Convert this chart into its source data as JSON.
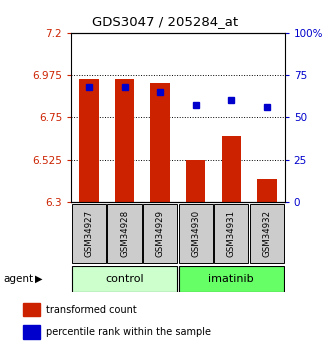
{
  "title": "GDS3047 / 205284_at",
  "samples": [
    "GSM34927",
    "GSM34928",
    "GSM34929",
    "GSM34930",
    "GSM34931",
    "GSM34932"
  ],
  "bar_values": [
    6.955,
    6.955,
    6.93,
    6.525,
    6.65,
    6.42
  ],
  "percentile_values": [
    68,
    68,
    65,
    57,
    60,
    56
  ],
  "ylim_left": [
    6.3,
    7.2
  ],
  "ylim_right": [
    0,
    100
  ],
  "yticks_left": [
    6.3,
    6.525,
    6.75,
    6.975,
    7.2
  ],
  "ytick_labels_left": [
    "6.3",
    "6.525",
    "6.75",
    "6.975",
    "7.2"
  ],
  "yticks_right": [
    0,
    25,
    50,
    75,
    100
  ],
  "ytick_labels_right": [
    "0",
    "25",
    "50",
    "75",
    "100%"
  ],
  "hlines": [
    6.975,
    6.75,
    6.525
  ],
  "groups": [
    {
      "label": "control",
      "indices": [
        0,
        1,
        2
      ],
      "color": "#ccffcc"
    },
    {
      "label": "imatinib",
      "indices": [
        3,
        4,
        5
      ],
      "color": "#66ff66"
    }
  ],
  "bar_color": "#cc2200",
  "percentile_color": "#0000cc",
  "bar_bottom": 6.3,
  "legend_items": [
    {
      "color": "#cc2200",
      "label": "transformed count"
    },
    {
      "color": "#0000cc",
      "label": "percentile rank within the sample"
    }
  ],
  "left_tick_color": "#cc2200",
  "right_tick_color": "#0000cc",
  "sample_box_color": "#cccccc",
  "group_colors": [
    "#ccffcc",
    "#66ff66"
  ]
}
